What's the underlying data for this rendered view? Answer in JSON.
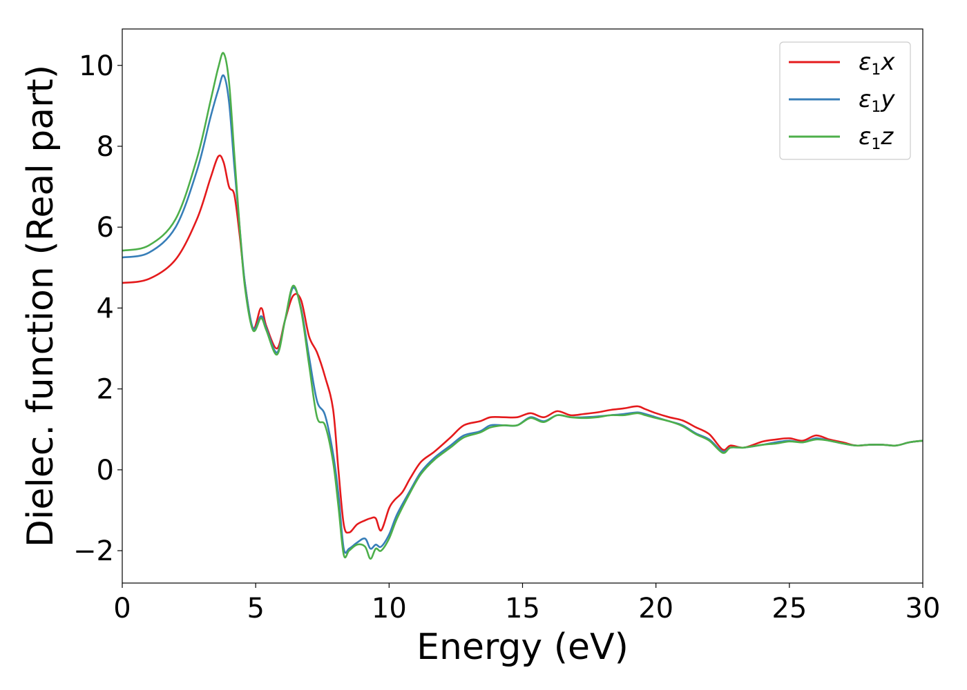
{
  "chart_data": {
    "type": "line",
    "xlabel": "Energy (eV)",
    "ylabel": "Dielec. function (Real part)",
    "xlim": [
      0,
      30
    ],
    "ylim": [
      -2.8,
      10.9
    ],
    "xticks": [
      0,
      5,
      10,
      15,
      20,
      25,
      30
    ],
    "yticks": [
      -2,
      0,
      2,
      4,
      6,
      8,
      10
    ],
    "xtick_labels": [
      "0",
      "5",
      "10",
      "15",
      "20",
      "25",
      "30"
    ],
    "ytick_labels": [
      "−2",
      "0",
      "2",
      "4",
      "6",
      "8",
      "10"
    ],
    "grid": false,
    "legend_position": "top-right",
    "series": [
      {
        "name": "ε1x",
        "legend_symbol": "ε",
        "legend_sub": "1",
        "legend_var": "x",
        "color": "#e41a1c",
        "points": [
          [
            0,
            4.62
          ],
          [
            1,
            4.72
          ],
          [
            2,
            5.2
          ],
          [
            2.8,
            6.2
          ],
          [
            3.3,
            7.2
          ],
          [
            3.6,
            7.75
          ],
          [
            3.8,
            7.6
          ],
          [
            4.0,
            7.0
          ],
          [
            4.2,
            6.8
          ],
          [
            4.4,
            5.8
          ],
          [
            4.6,
            4.6
          ],
          [
            4.9,
            3.5
          ],
          [
            5.2,
            4.0
          ],
          [
            5.4,
            3.55
          ],
          [
            5.8,
            3.0
          ],
          [
            6.1,
            3.7
          ],
          [
            6.4,
            4.3
          ],
          [
            6.7,
            4.2
          ],
          [
            7.0,
            3.3
          ],
          [
            7.3,
            2.9
          ],
          [
            7.6,
            2.3
          ],
          [
            7.9,
            1.5
          ],
          [
            8.1,
            0.0
          ],
          [
            8.3,
            -1.35
          ],
          [
            8.5,
            -1.55
          ],
          [
            8.8,
            -1.35
          ],
          [
            9.1,
            -1.25
          ],
          [
            9.3,
            -1.2
          ],
          [
            9.5,
            -1.2
          ],
          [
            9.7,
            -1.5
          ],
          [
            10.0,
            -0.95
          ],
          [
            10.2,
            -0.75
          ],
          [
            10.5,
            -0.55
          ],
          [
            10.8,
            -0.2
          ],
          [
            11.2,
            0.2
          ],
          [
            11.7,
            0.45
          ],
          [
            12.3,
            0.8
          ],
          [
            12.8,
            1.1
          ],
          [
            13.4,
            1.2
          ],
          [
            13.8,
            1.3
          ],
          [
            14.3,
            1.3
          ],
          [
            14.8,
            1.3
          ],
          [
            15.3,
            1.4
          ],
          [
            15.8,
            1.3
          ],
          [
            16.3,
            1.45
          ],
          [
            16.8,
            1.35
          ],
          [
            17.3,
            1.38
          ],
          [
            17.8,
            1.42
          ],
          [
            18.3,
            1.48
          ],
          [
            18.8,
            1.52
          ],
          [
            19.3,
            1.57
          ],
          [
            19.6,
            1.5
          ],
          [
            20.0,
            1.4
          ],
          [
            20.5,
            1.3
          ],
          [
            21.0,
            1.22
          ],
          [
            21.5,
            1.05
          ],
          [
            22.0,
            0.88
          ],
          [
            22.5,
            0.5
          ],
          [
            22.8,
            0.6
          ],
          [
            23.3,
            0.55
          ],
          [
            24.0,
            0.7
          ],
          [
            24.5,
            0.75
          ],
          [
            25.0,
            0.78
          ],
          [
            25.5,
            0.72
          ],
          [
            26.0,
            0.85
          ],
          [
            26.5,
            0.75
          ],
          [
            27.0,
            0.68
          ],
          [
            27.5,
            0.6
          ],
          [
            28.0,
            0.62
          ],
          [
            28.5,
            0.62
          ],
          [
            29.0,
            0.6
          ],
          [
            29.5,
            0.68
          ],
          [
            30,
            0.72
          ]
        ]
      },
      {
        "name": "ε1y",
        "legend_symbol": "ε",
        "legend_sub": "1",
        "legend_var": "y",
        "color": "#377eb8",
        "points": [
          [
            0,
            5.25
          ],
          [
            1,
            5.37
          ],
          [
            2,
            6.0
          ],
          [
            2.8,
            7.4
          ],
          [
            3.3,
            8.7
          ],
          [
            3.6,
            9.4
          ],
          [
            3.8,
            9.75
          ],
          [
            4.0,
            9.1
          ],
          [
            4.2,
            7.5
          ],
          [
            4.4,
            6.0
          ],
          [
            4.6,
            4.6
          ],
          [
            4.9,
            3.5
          ],
          [
            5.2,
            3.8
          ],
          [
            5.4,
            3.5
          ],
          [
            5.8,
            2.9
          ],
          [
            6.1,
            3.7
          ],
          [
            6.4,
            4.5
          ],
          [
            6.7,
            4.0
          ],
          [
            7.0,
            2.8
          ],
          [
            7.3,
            1.7
          ],
          [
            7.6,
            1.35
          ],
          [
            7.9,
            0.4
          ],
          [
            8.1,
            -0.6
          ],
          [
            8.3,
            -1.95
          ],
          [
            8.5,
            -1.95
          ],
          [
            8.8,
            -1.8
          ],
          [
            9.1,
            -1.7
          ],
          [
            9.3,
            -1.95
          ],
          [
            9.5,
            -1.85
          ],
          [
            9.7,
            -1.9
          ],
          [
            10.0,
            -1.6
          ],
          [
            10.3,
            -1.1
          ],
          [
            10.8,
            -0.5
          ],
          [
            11.2,
            -0.05
          ],
          [
            11.7,
            0.3
          ],
          [
            12.3,
            0.6
          ],
          [
            12.8,
            0.85
          ],
          [
            13.4,
            0.95
          ],
          [
            13.8,
            1.1
          ],
          [
            14.3,
            1.1
          ],
          [
            14.8,
            1.1
          ],
          [
            15.3,
            1.3
          ],
          [
            15.8,
            1.2
          ],
          [
            16.3,
            1.35
          ],
          [
            16.8,
            1.3
          ],
          [
            17.3,
            1.3
          ],
          [
            17.8,
            1.32
          ],
          [
            18.3,
            1.35
          ],
          [
            18.8,
            1.38
          ],
          [
            19.3,
            1.42
          ],
          [
            19.6,
            1.38
          ],
          [
            20.0,
            1.3
          ],
          [
            20.5,
            1.2
          ],
          [
            21.0,
            1.1
          ],
          [
            21.5,
            0.9
          ],
          [
            22.0,
            0.75
          ],
          [
            22.5,
            0.45
          ],
          [
            22.8,
            0.55
          ],
          [
            23.3,
            0.55
          ],
          [
            24.0,
            0.62
          ],
          [
            24.5,
            0.68
          ],
          [
            25.0,
            0.72
          ],
          [
            25.5,
            0.68
          ],
          [
            26.0,
            0.78
          ],
          [
            26.5,
            0.72
          ],
          [
            27.0,
            0.65
          ],
          [
            27.5,
            0.6
          ],
          [
            28.0,
            0.62
          ],
          [
            28.5,
            0.62
          ],
          [
            29.0,
            0.6
          ],
          [
            29.5,
            0.68
          ],
          [
            30,
            0.72
          ]
        ]
      },
      {
        "name": "ε1z",
        "legend_symbol": "ε",
        "legend_sub": "1",
        "legend_var": "z",
        "color": "#4daf4a",
        "points": [
          [
            0,
            5.42
          ],
          [
            1,
            5.55
          ],
          [
            2,
            6.2
          ],
          [
            2.8,
            7.7
          ],
          [
            3.3,
            9.1
          ],
          [
            3.6,
            9.95
          ],
          [
            3.8,
            10.3
          ],
          [
            4.0,
            9.6
          ],
          [
            4.2,
            7.8
          ],
          [
            4.4,
            6.0
          ],
          [
            4.6,
            4.5
          ],
          [
            4.9,
            3.45
          ],
          [
            5.2,
            3.75
          ],
          [
            5.4,
            3.45
          ],
          [
            5.8,
            2.85
          ],
          [
            6.1,
            3.7
          ],
          [
            6.4,
            4.55
          ],
          [
            6.7,
            3.95
          ],
          [
            7.0,
            2.6
          ],
          [
            7.3,
            1.3
          ],
          [
            7.6,
            1.1
          ],
          [
            7.9,
            0.2
          ],
          [
            8.1,
            -0.9
          ],
          [
            8.3,
            -2.1
          ],
          [
            8.5,
            -2.0
          ],
          [
            8.8,
            -1.85
          ],
          [
            9.1,
            -1.9
          ],
          [
            9.3,
            -2.2
          ],
          [
            9.5,
            -1.95
          ],
          [
            9.7,
            -2.0
          ],
          [
            10.0,
            -1.7
          ],
          [
            10.3,
            -1.2
          ],
          [
            10.8,
            -0.55
          ],
          [
            11.2,
            -0.1
          ],
          [
            11.7,
            0.25
          ],
          [
            12.3,
            0.55
          ],
          [
            12.8,
            0.8
          ],
          [
            13.4,
            0.92
          ],
          [
            13.8,
            1.05
          ],
          [
            14.3,
            1.1
          ],
          [
            14.8,
            1.1
          ],
          [
            15.3,
            1.28
          ],
          [
            15.8,
            1.18
          ],
          [
            16.3,
            1.35
          ],
          [
            16.8,
            1.3
          ],
          [
            17.3,
            1.28
          ],
          [
            17.8,
            1.3
          ],
          [
            18.3,
            1.35
          ],
          [
            18.8,
            1.35
          ],
          [
            19.3,
            1.4
          ],
          [
            19.6,
            1.35
          ],
          [
            20.0,
            1.28
          ],
          [
            20.5,
            1.2
          ],
          [
            21.0,
            1.08
          ],
          [
            21.5,
            0.88
          ],
          [
            22.0,
            0.72
          ],
          [
            22.5,
            0.42
          ],
          [
            22.8,
            0.55
          ],
          [
            23.3,
            0.55
          ],
          [
            24.0,
            0.62
          ],
          [
            24.5,
            0.65
          ],
          [
            25.0,
            0.7
          ],
          [
            25.5,
            0.68
          ],
          [
            26.0,
            0.75
          ],
          [
            26.5,
            0.72
          ],
          [
            27.0,
            0.65
          ],
          [
            27.5,
            0.6
          ],
          [
            28.0,
            0.62
          ],
          [
            28.5,
            0.62
          ],
          [
            29.0,
            0.6
          ],
          [
            29.5,
            0.68
          ],
          [
            30,
            0.72
          ]
        ]
      }
    ]
  }
}
